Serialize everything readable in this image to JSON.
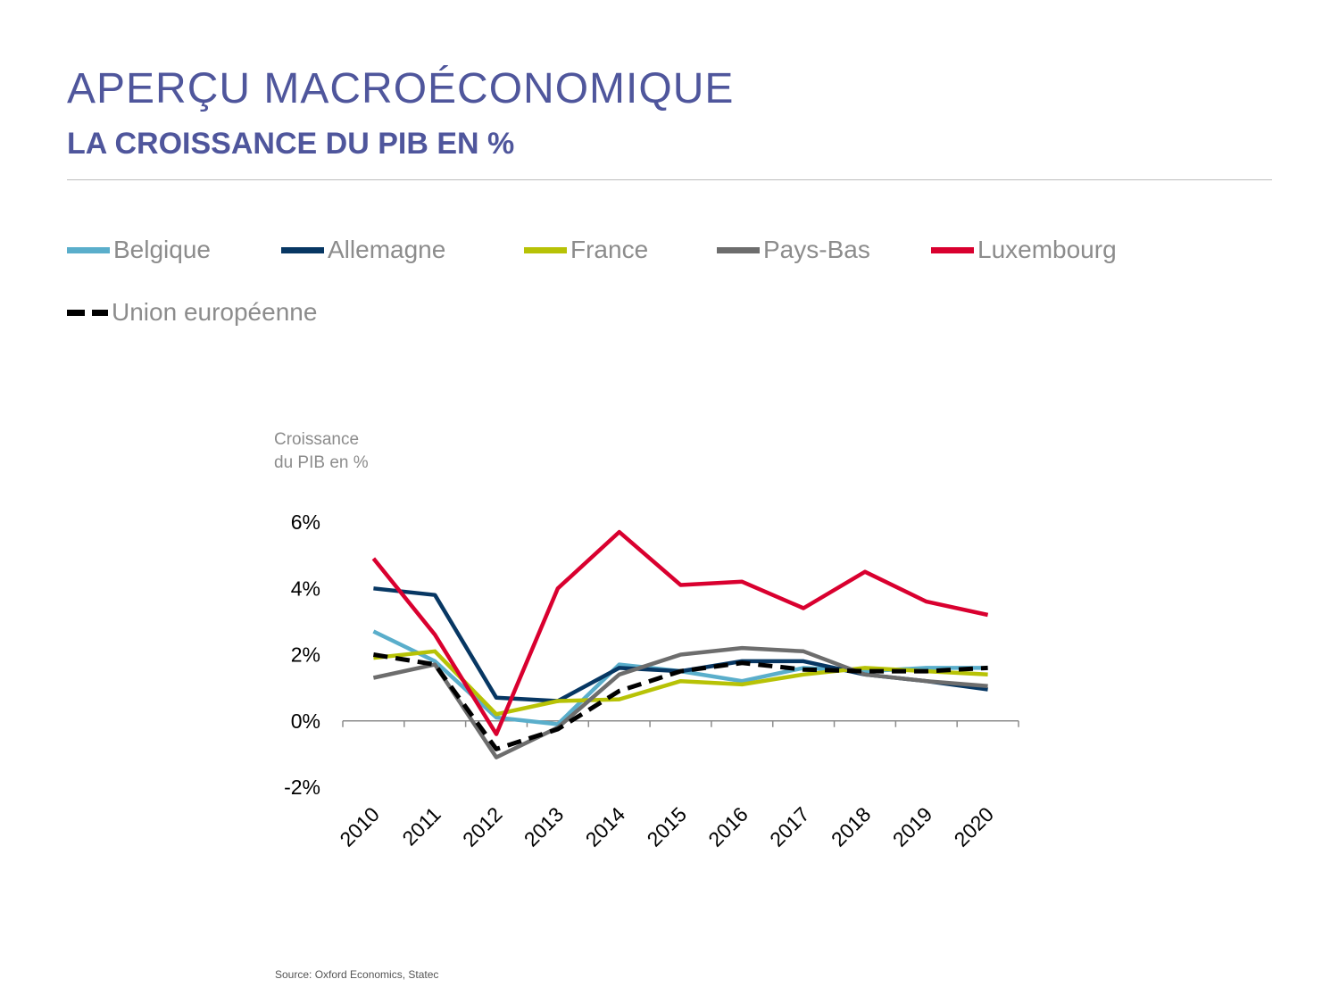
{
  "header": {
    "title": "APERÇU MACROÉCONOMIQUE",
    "subtitle": "LA CROISSANCE DU PIB EN %"
  },
  "footer": {
    "source": "Source: Oxford Economics, Statec"
  },
  "chart_data": {
    "type": "line",
    "ylabel_lines": [
      "Croissance",
      "du PIB en %"
    ],
    "x": [
      "2010",
      "2011",
      "2012",
      "2013",
      "2014",
      "2015",
      "2016",
      "2017",
      "2018",
      "2019",
      "2020"
    ],
    "yticks": [
      "6%",
      "4%",
      "2%",
      "0%",
      "-2%"
    ],
    "ytick_values": [
      6,
      4,
      2,
      0,
      -2
    ],
    "ylim": [
      -2,
      6
    ],
    "grid": false,
    "legend_position": "top",
    "series": [
      {
        "name": "Belgique",
        "color": "#5aaecb",
        "dashed": false,
        "values": [
          2.7,
          1.8,
          0.1,
          -0.1,
          1.7,
          1.5,
          1.2,
          1.6,
          1.5,
          1.6,
          1.6
        ]
      },
      {
        "name": "Allemagne",
        "color": "#073763",
        "dashed": false,
        "values": [
          4.0,
          3.8,
          0.7,
          0.6,
          1.6,
          1.5,
          1.8,
          1.8,
          1.4,
          1.2,
          0.95
        ]
      },
      {
        "name": "France",
        "color": "#b7c206",
        "dashed": false,
        "values": [
          1.9,
          2.1,
          0.2,
          0.6,
          0.65,
          1.2,
          1.1,
          1.4,
          1.6,
          1.5,
          1.4
        ]
      },
      {
        "name": "Pays-Bas",
        "color": "#6d6d6d",
        "dashed": false,
        "values": [
          1.3,
          1.7,
          -1.1,
          -0.2,
          1.4,
          2.0,
          2.2,
          2.1,
          1.4,
          1.2,
          1.05
        ]
      },
      {
        "name": "Luxembourg",
        "color": "#d9002f",
        "dashed": false,
        "values": [
          4.9,
          2.6,
          -0.4,
          4.0,
          5.7,
          4.1,
          4.2,
          3.4,
          4.5,
          3.6,
          3.2
        ]
      },
      {
        "name": "Union européenne",
        "color": "#000000",
        "dashed": true,
        "values": [
          2.0,
          1.7,
          -0.85,
          -0.25,
          0.9,
          1.5,
          1.75,
          1.55,
          1.5,
          1.5,
          1.6
        ]
      }
    ]
  }
}
